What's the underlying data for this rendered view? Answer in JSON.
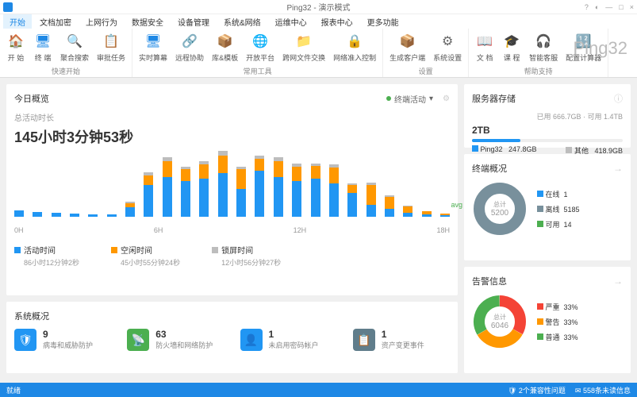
{
  "window": {
    "title": "Ping32 - 演示模式",
    "brand": "Ping32"
  },
  "menu": {
    "tabs": [
      "开始",
      "文档加密",
      "上网行为",
      "数据安全",
      "设备管理",
      "系统&网络",
      "运维中心",
      "报表中心",
      "更多功能"
    ],
    "active": 0
  },
  "ribbon": {
    "groups": [
      {
        "label": "快速开始",
        "items": [
          {
            "icon": "🏠",
            "label": "开 始",
            "color": "#666"
          },
          {
            "icon": "🖥",
            "label": "终 端",
            "color": "#1e88e5"
          },
          {
            "icon": "🔍",
            "label": "聚合搜索",
            "color": "#1e88e5"
          },
          {
            "icon": "📋",
            "label": "审批任务",
            "color": "#1e88e5"
          }
        ]
      },
      {
        "label": "常用工具",
        "items": [
          {
            "icon": "🖥",
            "label": "实时算幕",
            "color": "#1e88e5"
          },
          {
            "icon": "🔗",
            "label": "远程协助",
            "color": "#1e88e5"
          },
          {
            "icon": "📦",
            "label": "库&模板",
            "color": "#ff9800"
          },
          {
            "icon": "🌐",
            "label": "开放平台",
            "color": "#4caf50"
          },
          {
            "icon": "📁",
            "label": "跨网文件交换",
            "color": "#1e88e5"
          },
          {
            "icon": "🔒",
            "label": "网络准入控制",
            "color": "#1e88e5"
          }
        ]
      },
      {
        "label": "设置",
        "items": [
          {
            "icon": "📦",
            "label": "生成客户端",
            "color": "#ff9800"
          },
          {
            "icon": "⚙",
            "label": "系统设置",
            "color": "#666"
          }
        ]
      },
      {
        "label": "帮助支持",
        "items": [
          {
            "icon": "📖",
            "label": "文 档",
            "color": "#1e88e5"
          },
          {
            "icon": "🎓",
            "label": "课 程",
            "color": "#1e88e5"
          },
          {
            "icon": "🎧",
            "label": "智能客服",
            "color": "#e91e63"
          },
          {
            "icon": "🔢",
            "label": "配置计算器",
            "color": "#1e88e5"
          }
        ]
      }
    ]
  },
  "overview": {
    "title": "今日概览",
    "status": "终端活动",
    "subLabel": "总活动时长",
    "total": "145小时3分钟53秒",
    "bars": [
      {
        "b": 8,
        "o": 0,
        "g": 0
      },
      {
        "b": 6,
        "o": 0,
        "g": 0
      },
      {
        "b": 5,
        "o": 0,
        "g": 0
      },
      {
        "b": 4,
        "o": 0,
        "g": 0
      },
      {
        "b": 3,
        "o": 0,
        "g": 0
      },
      {
        "b": 3,
        "o": 0,
        "g": 0
      },
      {
        "b": 12,
        "o": 5,
        "g": 2
      },
      {
        "b": 40,
        "o": 12,
        "g": 4
      },
      {
        "b": 50,
        "o": 20,
        "g": 5
      },
      {
        "b": 45,
        "o": 15,
        "g": 3
      },
      {
        "b": 48,
        "o": 18,
        "g": 4
      },
      {
        "b": 55,
        "o": 22,
        "g": 6
      },
      {
        "b": 35,
        "o": 25,
        "g": 3
      },
      {
        "b": 58,
        "o": 15,
        "g": 4
      },
      {
        "b": 50,
        "o": 20,
        "g": 5
      },
      {
        "b": 45,
        "o": 18,
        "g": 4
      },
      {
        "b": 48,
        "o": 16,
        "g": 3
      },
      {
        "b": 42,
        "o": 20,
        "g": 4
      },
      {
        "b": 30,
        "o": 10,
        "g": 2
      },
      {
        "b": 15,
        "o": 25,
        "g": 3
      },
      {
        "b": 10,
        "o": 15,
        "g": 2
      },
      {
        "b": 5,
        "o": 8,
        "g": 1
      },
      {
        "b": 3,
        "o": 4,
        "g": 0
      },
      {
        "b": 2,
        "o": 2,
        "g": 0
      }
    ],
    "xLabels": [
      "0H",
      "6H",
      "12H",
      "18H"
    ],
    "legend": [
      {
        "color": "#2196f3",
        "label": "活动时间",
        "value": "86小时12分钟2秒"
      },
      {
        "color": "#ff9800",
        "label": "空闲时间",
        "value": "45小时55分钟24秒"
      },
      {
        "color": "#bdbdbd",
        "label": "锁屏时间",
        "value": "12小时56分钟27秒"
      }
    ]
  },
  "system": {
    "title": "系统概况",
    "items": [
      {
        "icon": "🛡",
        "bg": "#2196f3",
        "num": "9",
        "label": "病毒和威胁防护"
      },
      {
        "icon": "📡",
        "bg": "#4caf50",
        "num": "63",
        "label": "防火墙和网络防护"
      },
      {
        "icon": "👤",
        "bg": "#2196f3",
        "num": "1",
        "label": "未启用密码帐户"
      },
      {
        "icon": "📋",
        "bg": "#607d8b",
        "num": "1",
        "label": "资产变更事件"
      }
    ]
  },
  "storage": {
    "title": "服务器存储",
    "total": "2TB",
    "used": "已用 666.7GB",
    "free": "可用 1.4TB",
    "items": [
      {
        "color": "#2196f3",
        "label": "Ping32",
        "val": "247.8GB"
      },
      {
        "color": "#bdbdbd",
        "label": "其他",
        "val": "418.9GB"
      }
    ]
  },
  "terminal": {
    "title": "终端概况",
    "centerLabel": "总计",
    "centerVal": "5200",
    "donut": {
      "online": 1,
      "offline": 5185,
      "available": 14,
      "colors": {
        "online": "#2196f3",
        "offline": "#78909c",
        "available": "#4caf50"
      }
    },
    "legend": [
      {
        "color": "#2196f3",
        "label": "在线",
        "val": "1"
      },
      {
        "color": "#78909c",
        "label": "离线",
        "val": "5185"
      },
      {
        "color": "#4caf50",
        "label": "可用",
        "val": "14"
      }
    ]
  },
  "alert": {
    "title": "告警信息",
    "centerLabel": "总计",
    "centerVal": "6046",
    "legend": [
      {
        "color": "#f44336",
        "label": "严重",
        "val": "33%"
      },
      {
        "color": "#ff9800",
        "label": "警告",
        "val": "33%"
      },
      {
        "color": "#4caf50",
        "label": "普通",
        "val": "33%"
      }
    ]
  },
  "statusbar": {
    "left": "就绪",
    "compat": "2个兼容性问题",
    "unread": "558条未读信息"
  }
}
